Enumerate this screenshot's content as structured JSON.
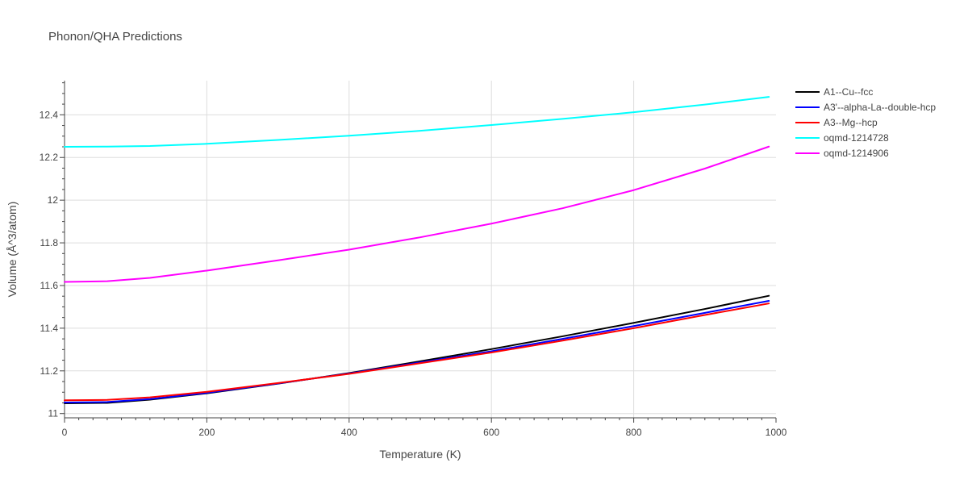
{
  "chart_data": {
    "type": "line",
    "title": "Phonon/QHA Predictions",
    "xlabel": "Temperature (K)",
    "ylabel": "Volume (Å^3/atom)",
    "xlim": [
      0,
      1000
    ],
    "ylim": [
      10.98,
      12.56
    ],
    "xticks": [
      0,
      200,
      400,
      600,
      800,
      1000
    ],
    "yticks": [
      11,
      11.2,
      11.4,
      11.6,
      11.8,
      12,
      12.2,
      12.4
    ],
    "xtick_labels": [
      "0",
      "200",
      "400",
      "600",
      "800",
      "1000"
    ],
    "ytick_labels": [
      "11",
      "11.2",
      "11.4",
      "11.6",
      "11.8",
      "12",
      "12.2",
      "12.4"
    ],
    "grid": true,
    "legend_position": "top-right, outside plot",
    "series": [
      {
        "name": "A1--Cu--fcc",
        "color": "#000000",
        "x": [
          0,
          60,
          120,
          200,
          300,
          400,
          500,
          600,
          700,
          800,
          900,
          990
        ],
        "y": [
          11.048,
          11.05,
          11.065,
          11.095,
          11.14,
          11.19,
          11.245,
          11.302,
          11.362,
          11.425,
          11.49,
          11.552
        ]
      },
      {
        "name": "A3'--alpha-La--double-hcp",
        "color": "#0000ff",
        "x": [
          0,
          60,
          120,
          200,
          300,
          400,
          500,
          600,
          700,
          800,
          900,
          990
        ],
        "y": [
          11.052,
          11.054,
          11.068,
          11.097,
          11.141,
          11.188,
          11.24,
          11.292,
          11.35,
          11.41,
          11.472,
          11.528
        ]
      },
      {
        "name": "A3--Mg--hcp",
        "color": "#ff0000",
        "x": [
          0,
          60,
          120,
          200,
          300,
          400,
          500,
          600,
          700,
          800,
          900,
          990
        ],
        "y": [
          11.062,
          11.064,
          11.076,
          11.102,
          11.143,
          11.186,
          11.236,
          11.286,
          11.342,
          11.4,
          11.462,
          11.516
        ]
      },
      {
        "name": "oqmd-1214728",
        "color": "#00ffff",
        "x": [
          0,
          60,
          120,
          200,
          300,
          400,
          500,
          600,
          700,
          800,
          900,
          990
        ],
        "y": [
          12.25,
          12.251,
          12.254,
          12.264,
          12.282,
          12.302,
          12.325,
          12.352,
          12.381,
          12.412,
          12.448,
          12.484
        ]
      },
      {
        "name": "oqmd-1214906",
        "color": "#ff00ff",
        "x": [
          0,
          60,
          120,
          200,
          300,
          400,
          500,
          600,
          700,
          800,
          900,
          990
        ],
        "y": [
          11.617,
          11.62,
          11.636,
          11.67,
          11.718,
          11.768,
          11.826,
          11.89,
          11.962,
          12.047,
          12.148,
          12.251
        ]
      }
    ]
  }
}
